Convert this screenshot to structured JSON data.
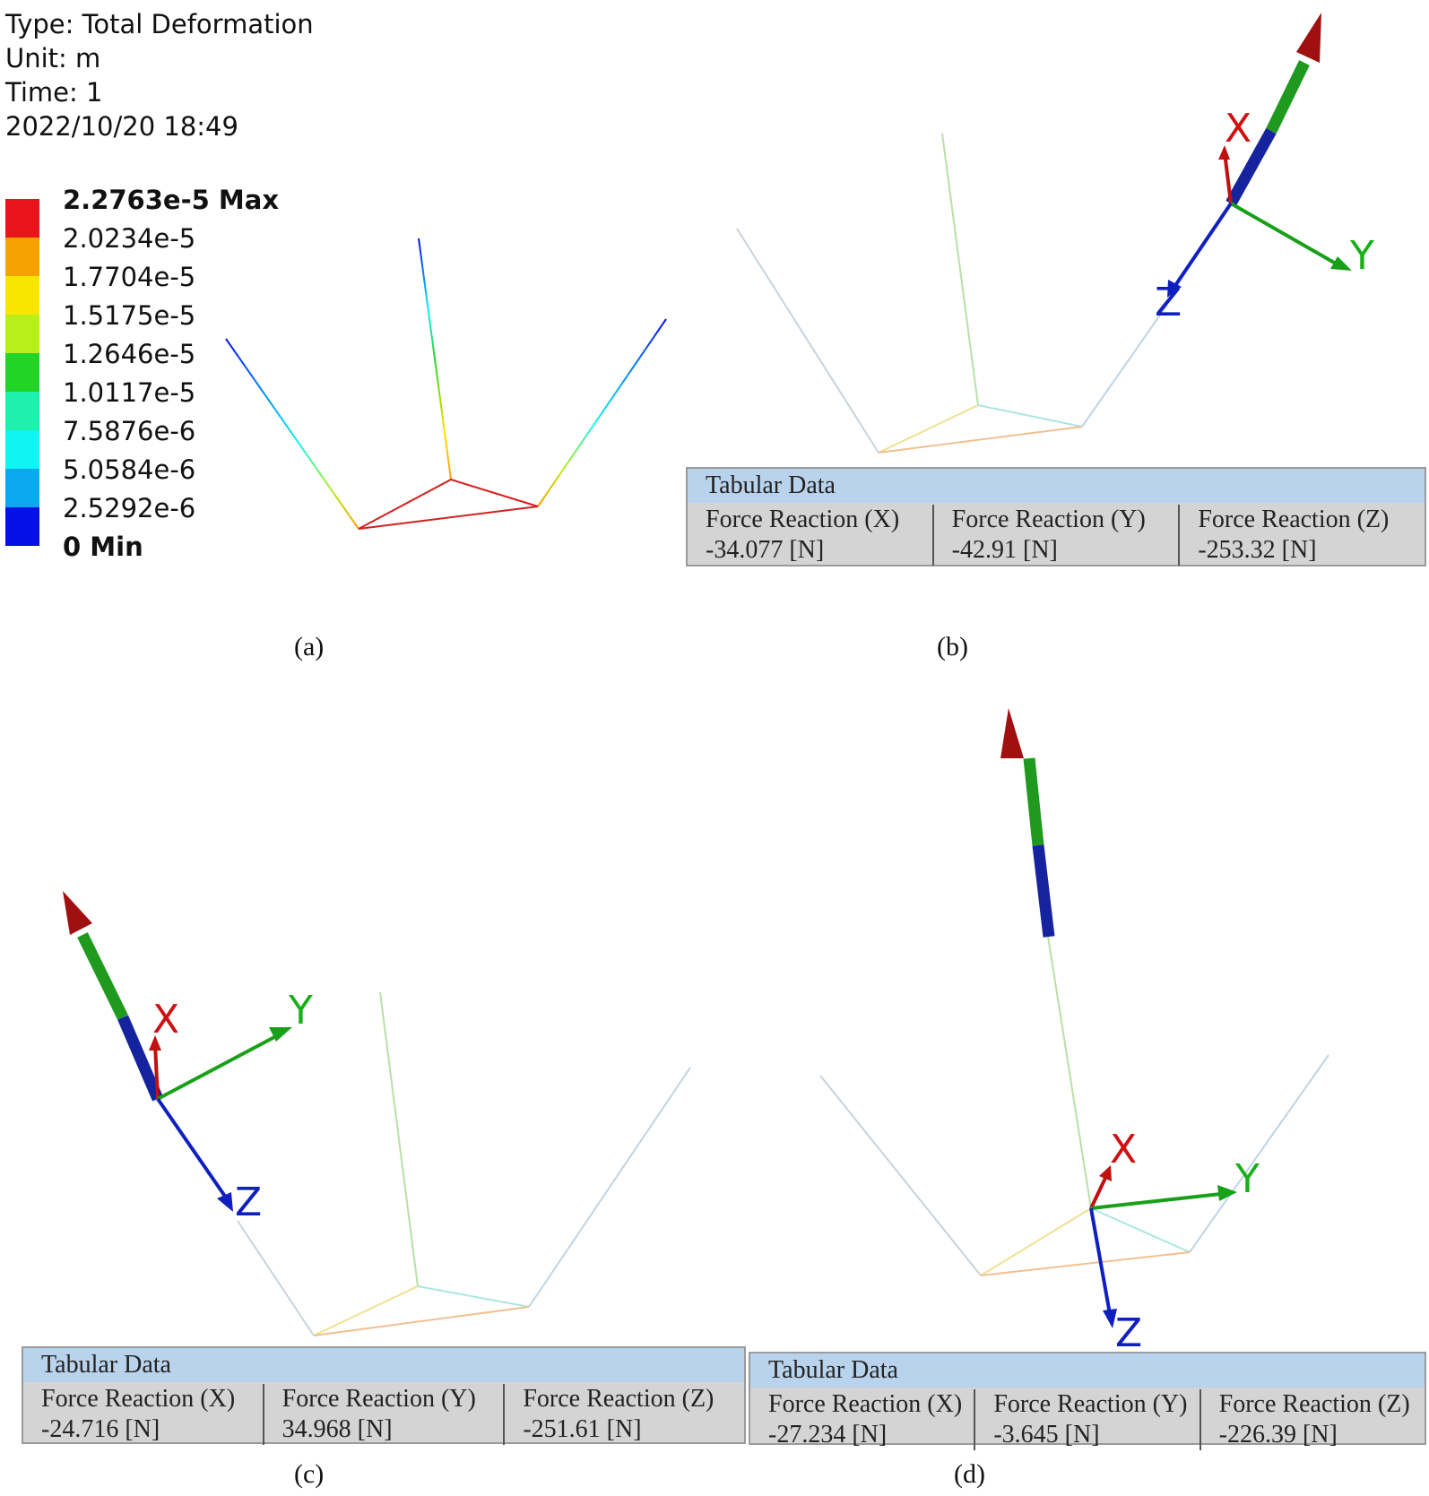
{
  "legend": {
    "type": "Type: Total Deformation",
    "unit": "Unit: m",
    "time": "Time: 1",
    "date": "2022/10/20 18:49",
    "levels": [
      {
        "label": "2.2763e-5 Max",
        "color": "#e8141c",
        "bold": true
      },
      {
        "label": "2.0234e-5",
        "color": "#f7a100"
      },
      {
        "label": "1.7704e-5",
        "color": "#f8e600"
      },
      {
        "label": "1.5175e-5",
        "color": "#b8ee1a"
      },
      {
        "label": "1.2646e-5",
        "color": "#22d426"
      },
      {
        "label": "1.0117e-5",
        "color": "#1ff0ac"
      },
      {
        "label": "7.5876e-6",
        "color": "#10f4f4"
      },
      {
        "label": "5.0584e-6",
        "color": "#0aa8ef"
      },
      {
        "label": "2.5292e-6",
        "color": "#0610e6"
      },
      {
        "label": "0 Min",
        "bold": true
      }
    ]
  },
  "captions": {
    "a": "(a)",
    "b": "(b)",
    "c": "(c)",
    "d": "(d)"
  },
  "axes": {
    "x": "X",
    "y": "Y",
    "z": "Z"
  },
  "tables": {
    "b": {
      "title": "Tabular Data",
      "headers": [
        "Force Reaction (X)",
        "Force Reaction (Y)",
        "Force Reaction (Z)"
      ],
      "values": [
        "-34.077 [N]",
        "-42.91 [N]",
        "-253.32 [N]"
      ]
    },
    "c": {
      "title": "Tabular Data",
      "headers": [
        "Force Reaction (X)",
        "Force Reaction (Y)",
        "Force Reaction (Z)"
      ],
      "values": [
        "-24.716 [N]",
        "34.968 [N]",
        "-251.61 [N]"
      ]
    },
    "d": {
      "title": "Tabular Data",
      "headers": [
        "Force Reaction (X)",
        "Force Reaction (Y)",
        "Force Reaction (Z)"
      ],
      "values": [
        "-27.234 [N]",
        "-3.645 [N]",
        "-226.39 [N]"
      ]
    }
  },
  "colors": {
    "x_axis": "#d01010",
    "y_axis": "#18b018",
    "z_axis": "#1020c0",
    "arrow_green": "#1f9a1f",
    "arrow_blue": "#16239e",
    "arrow_red": "#a01010"
  }
}
